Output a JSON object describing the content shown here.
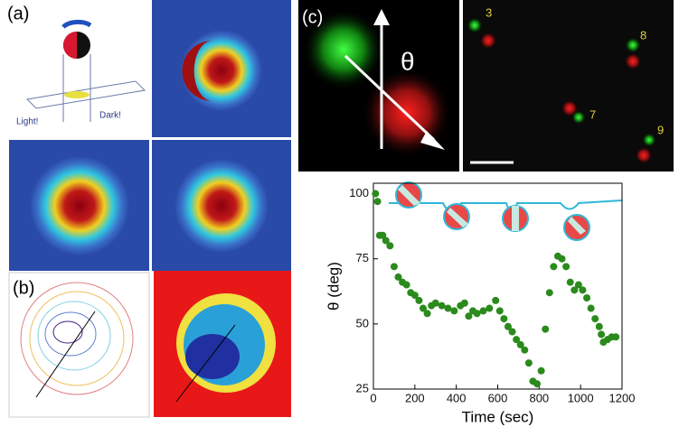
{
  "labels": {
    "panel_a": "(a)",
    "panel_b": "(b)",
    "panel_c": "(c)",
    "light": "Light!",
    "dark": "Dark!",
    "theta": "θ",
    "particles": [
      "3",
      "8",
      "7",
      "9"
    ]
  },
  "chart_data": {
    "type": "scatter",
    "xlabel": "Time (sec)",
    "ylabel": "θ (deg)",
    "x": [
      10,
      20,
      30,
      45,
      60,
      80,
      100,
      120,
      140,
      160,
      180,
      200,
      220,
      240,
      260,
      280,
      300,
      330,
      360,
      390,
      420,
      440,
      460,
      480,
      500,
      530,
      560,
      590,
      610,
      630,
      650,
      670,
      690,
      710,
      730,
      750,
      770,
      790,
      810,
      830,
      850,
      870,
      890,
      910,
      930,
      950,
      970,
      990,
      1010,
      1030,
      1050,
      1070,
      1090,
      1100,
      1110,
      1130,
      1150,
      1170
    ],
    "values": [
      100,
      97,
      84,
      84,
      82,
      80,
      72,
      68,
      66,
      65,
      62,
      61,
      59,
      56,
      54,
      57,
      58,
      57,
      56,
      55,
      57,
      58,
      53,
      55,
      54,
      55,
      56,
      59,
      55,
      52,
      49,
      47,
      44,
      42,
      40,
      35,
      28,
      27,
      32,
      48,
      62,
      72,
      76,
      75,
      72,
      66,
      63,
      65,
      63,
      60,
      56,
      52,
      49,
      46,
      43,
      44,
      45,
      45
    ],
    "color": "#2a8a1c",
    "xlim": [
      0,
      1200
    ],
    "ylim": [
      25,
      104
    ],
    "xticks": [
      0,
      200,
      400,
      600,
      800,
      1000,
      1200
    ],
    "yticks": [
      25,
      50,
      75,
      100
    ]
  }
}
